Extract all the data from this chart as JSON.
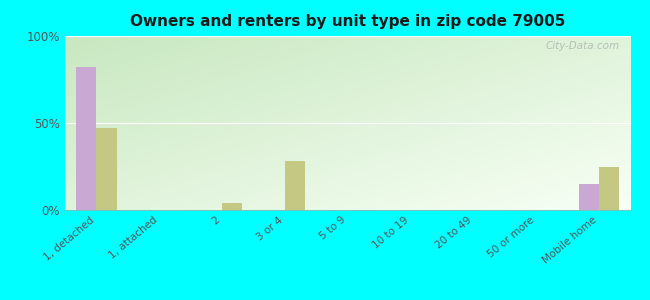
{
  "title": "Owners and renters by unit type in zip code 79005",
  "categories": [
    "1, detached",
    "1, attached",
    "2",
    "3 or 4",
    "5 to 9",
    "10 to 19",
    "20 to 49",
    "50 or more",
    "Mobile home"
  ],
  "owner_values": [
    82,
    0,
    0,
    0,
    0,
    0,
    0,
    0,
    15
  ],
  "renter_values": [
    47,
    0,
    4,
    28,
    0,
    0,
    0,
    0,
    25
  ],
  "owner_color": "#c9a8d4",
  "renter_color": "#c5c882",
  "background_color": "#00ffff",
  "ylim": [
    0,
    100
  ],
  "yticks": [
    0,
    50,
    100
  ],
  "ytick_labels": [
    "0%",
    "50%",
    "100%"
  ],
  "bar_width": 0.32,
  "watermark": "City-Data.com",
  "grad_color_topleft": "#c8e8c0",
  "grad_color_bottomright": "#f0f8ee"
}
